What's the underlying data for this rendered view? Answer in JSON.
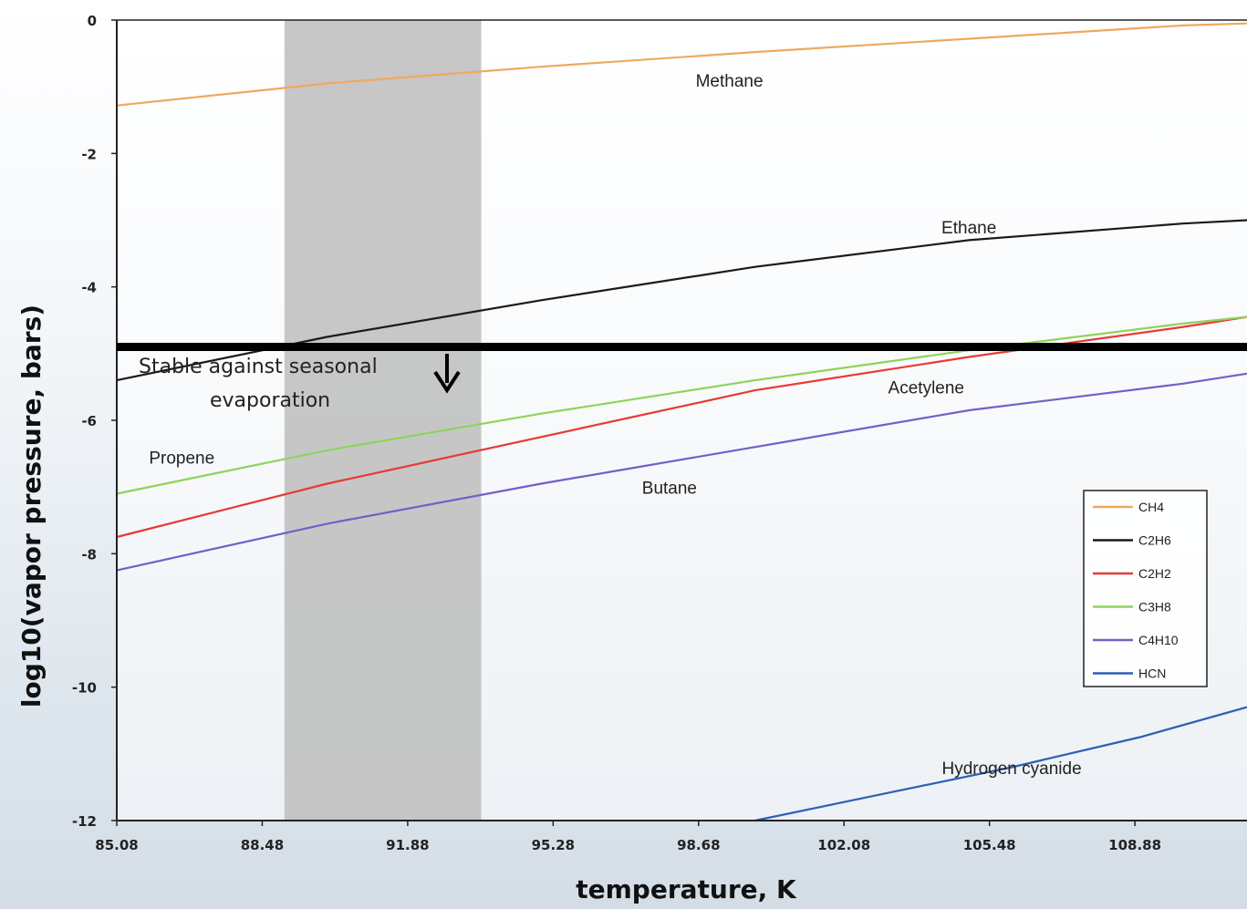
{
  "chart_data": {
    "type": "line",
    "xlabel": "temperature, K",
    "ylabel": "log10(vapor pressure, bars)",
    "xlim": [
      85.08,
      111.5
    ],
    "ylim": [
      -12,
      0
    ],
    "x_ticks": [
      "85.08",
      "88.48",
      "91.88",
      "95.28",
      "98.68",
      "102.08",
      "105.48",
      "108.88"
    ],
    "x_tick_values": [
      85.08,
      88.48,
      91.88,
      95.28,
      98.68,
      102.08,
      105.48,
      108.88
    ],
    "y_ticks": [
      "0",
      "-2",
      "-4",
      "-6",
      "-8",
      "-10",
      "-12"
    ],
    "y_tick_values": [
      0,
      -2,
      -4,
      -6,
      -8,
      -10,
      -12
    ],
    "grid": false,
    "legend_placement": "right",
    "series": [
      {
        "name": "CH4",
        "label": "Methane",
        "color": "#f0a860",
        "x": [
          85.08,
          90.0,
          95.0,
          100.0,
          105.0,
          110.0,
          111.5
        ],
        "y": [
          -1.28,
          -0.95,
          -0.7,
          -0.48,
          -0.28,
          -0.08,
          -0.05
        ]
      },
      {
        "name": "C2H6",
        "label": "Ethane",
        "color": "#1a1a1a",
        "x": [
          85.08,
          90.0,
          95.0,
          100.0,
          105.0,
          110.0,
          111.5
        ],
        "y": [
          -5.4,
          -4.75,
          -4.2,
          -3.7,
          -3.3,
          -3.05,
          -3.0
        ]
      },
      {
        "name": "C2H2",
        "label": "Acetylene",
        "color": "#e83a34",
        "x": [
          85.08,
          90.0,
          95.0,
          100.0,
          105.0,
          110.0,
          111.5
        ],
        "y": [
          -7.75,
          -6.95,
          -6.25,
          -5.55,
          -5.05,
          -4.6,
          -4.45
        ]
      },
      {
        "name": "C3H8",
        "label": "Propene",
        "color": "#8fd35a",
        "x": [
          85.08,
          90.0,
          95.0,
          100.0,
          105.0,
          110.0,
          111.5
        ],
        "y": [
          -7.1,
          -6.45,
          -5.9,
          -5.4,
          -4.95,
          -4.55,
          -4.45
        ]
      },
      {
        "name": "C4H10",
        "label": "Butane",
        "color": "#7060c8",
        "x": [
          85.08,
          90.0,
          95.0,
          100.0,
          105.0,
          110.0,
          111.5
        ],
        "y": [
          -8.25,
          -7.55,
          -6.95,
          -6.4,
          -5.85,
          -5.45,
          -5.3
        ]
      },
      {
        "name": "HCN",
        "label": "Hydrogen cyanide",
        "color": "#2f5fb4",
        "x": [
          100.0,
          103.0,
          106.0,
          109.0,
          111.5
        ],
        "y": [
          -12.0,
          -11.6,
          -11.2,
          -10.75,
          -10.3
        ]
      }
    ],
    "annotations": {
      "stable_line_y": -4.9,
      "stable_text_line1": "Stable against seasonal",
      "stable_text_line2": "evaporation",
      "shaded_band_x": [
        89.0,
        93.6
      ]
    }
  }
}
